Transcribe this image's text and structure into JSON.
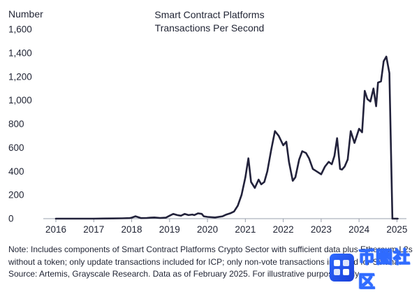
{
  "chart_data": {
    "type": "line",
    "title": "Smart Contract Platforms",
    "subtitle": "Transactions Per Second",
    "y_unit_label": "Number",
    "xlabel": "",
    "ylabel": "Number",
    "ylim": [
      0,
      1600
    ],
    "xlim": [
      2016,
      2025.25
    ],
    "y_ticks": [
      0,
      200,
      400,
      600,
      800,
      1000,
      1200,
      1400,
      1600
    ],
    "y_tick_labels": [
      "0",
      "200",
      "400",
      "600",
      "800",
      "1,000",
      "1,200",
      "1,400",
      "1,600"
    ],
    "x_ticks": [
      2016,
      2017,
      2018,
      2019,
      2020,
      2021,
      2022,
      2023,
      2024,
      2025
    ],
    "x_tick_labels": [
      "2016",
      "2017",
      "2018",
      "2019",
      "2020",
      "2021",
      "2022",
      "2023",
      "2024",
      "2025"
    ],
    "grid": false,
    "line_color": "#22223b",
    "series": [
      {
        "x": [
          2016.0,
          2016.25,
          2016.5,
          2016.75,
          2017.0,
          2017.25,
          2017.5,
          2017.75,
          2017.95,
          2018.0,
          2018.1,
          2018.25,
          2018.4,
          2018.5,
          2018.6,
          2018.75,
          2018.9,
          2019.0,
          2019.1,
          2019.2,
          2019.3,
          2019.4,
          2019.5,
          2019.6,
          2019.65,
          2019.75,
          2019.85,
          2019.9,
          2020.0,
          2020.2,
          2020.4,
          2020.5,
          2020.6,
          2020.7,
          2020.8,
          2020.9,
          2021.0,
          2021.08,
          2021.15,
          2021.25,
          2021.35,
          2021.42,
          2021.5,
          2021.58,
          2021.68,
          2021.78,
          2021.88,
          2022.0,
          2022.08,
          2022.15,
          2022.25,
          2022.32,
          2022.42,
          2022.5,
          2022.6,
          2022.68,
          2022.78,
          2022.88,
          2023.0,
          2023.1,
          2023.2,
          2023.28,
          2023.35,
          2023.42,
          2023.5,
          2023.55,
          2023.62,
          2023.7,
          2023.78,
          2023.88,
          2024.0,
          2024.08,
          2024.15,
          2024.22,
          2024.3,
          2024.38,
          2024.45,
          2024.5,
          2024.58,
          2024.65,
          2024.72,
          2024.8,
          2024.88,
          2024.95,
          2025.02,
          2025.1
        ],
        "y": [
          0,
          0,
          0,
          0,
          0,
          1,
          2,
          3,
          5,
          8,
          20,
          5,
          6,
          8,
          10,
          6,
          8,
          25,
          40,
          30,
          25,
          40,
          30,
          35,
          30,
          45,
          40,
          20,
          15,
          10,
          20,
          35,
          45,
          60,
          110,
          200,
          350,
          510,
          310,
          260,
          330,
          290,
          310,
          400,
          580,
          740,
          700,
          620,
          650,
          480,
          320,
          350,
          500,
          570,
          555,
          510,
          420,
          400,
          375,
          440,
          480,
          460,
          530,
          680,
          420,
          415,
          440,
          500,
          740,
          640,
          760,
          730,
          1080,
          1010,
          990,
          1100,
          950,
          1150,
          1160,
          1330,
          1370,
          1230,
          0,
          0,
          0,
          0
        ]
      }
    ]
  },
  "note": "Note: Includes components of Smart Contract Platforms Crypto Sector with sufficient data plus Ethereum L2s without a token; only update transactions included for ICP; only non-vote transactions included for Solana. Source: Artemis, Grayscale Research. Data as of February 2025. For illustrative purposes only.",
  "watermark": {
    "text": "币圈社区",
    "logo_icon": "ox-logo-icon",
    "color": "#2f6bff"
  }
}
